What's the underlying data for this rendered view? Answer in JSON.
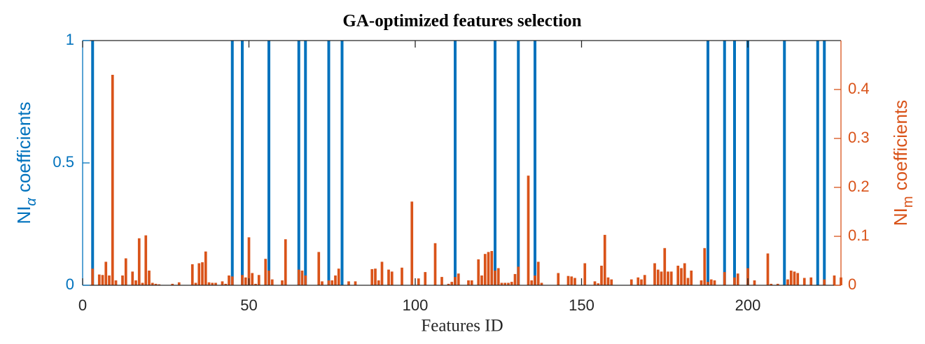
{
  "chart_data": {
    "type": "bar",
    "title": "GA-optimized features selection",
    "xlabel": "Features ID",
    "ylabel": [
      "NI",
      "α",
      "coefficients"
    ],
    "y2label": [
      "NI",
      "m",
      "coefficients"
    ],
    "xlim": [
      0,
      228
    ],
    "xticks": [
      0,
      50,
      100,
      150,
      200
    ],
    "ylim": [
      0,
      1
    ],
    "yticks": [
      0,
      0.5,
      1
    ],
    "y2lim": [
      0,
      0.5
    ],
    "y2ticks": [
      0,
      0.1,
      0.2,
      0.3,
      0.4
    ],
    "series": [
      {
        "color": "#0072BD",
        "x": [
          3,
          45,
          48,
          56,
          65,
          67,
          74,
          78,
          112,
          124,
          131,
          136,
          188,
          193,
          196,
          200,
          211,
          221,
          223
        ],
        "values": [
          1,
          1,
          1,
          1,
          1,
          1,
          1,
          1,
          1,
          1,
          1,
          1,
          1,
          1,
          1,
          1,
          1,
          1,
          1
        ]
      },
      {
        "color": "#D95319",
        "axis": "y2",
        "x": [
          1,
          2,
          3,
          4,
          5,
          6,
          7,
          8,
          9,
          10,
          11,
          12,
          13,
          14,
          15,
          16,
          17,
          18,
          19,
          20,
          21,
          22,
          23,
          24,
          25,
          26,
          27,
          28,
          29,
          30,
          31,
          32,
          33,
          34,
          35,
          36,
          37,
          38,
          39,
          40,
          41,
          42,
          43,
          44,
          45,
          46,
          47,
          48,
          49,
          50,
          51,
          52,
          53,
          54,
          55,
          56,
          57,
          58,
          59,
          60,
          61,
          62,
          63,
          64,
          65,
          66,
          67,
          68,
          69,
          70,
          71,
          72,
          73,
          74,
          75,
          76,
          77,
          78,
          79,
          80,
          81,
          82,
          83,
          84,
          85,
          86,
          87,
          88,
          89,
          90,
          91,
          92,
          93,
          94,
          95,
          96,
          97,
          98,
          99,
          100,
          101,
          102,
          103,
          104,
          105,
          106,
          107,
          108,
          109,
          110,
          111,
          112,
          113,
          114,
          115,
          116,
          117,
          118,
          119,
          120,
          121,
          122,
          123,
          124,
          125,
          126,
          127,
          128,
          129,
          130,
          131,
          132,
          133,
          134,
          135,
          136,
          137,
          138,
          139,
          140,
          141,
          142,
          143,
          144,
          145,
          146,
          147,
          148,
          149,
          150,
          151,
          152,
          153,
          154,
          155,
          156,
          157,
          158,
          159,
          160,
          161,
          162,
          163,
          164,
          165,
          166,
          167,
          168,
          169,
          170,
          171,
          172,
          173,
          174,
          175,
          176,
          177,
          178,
          179,
          180,
          181,
          182,
          183,
          184,
          185,
          186,
          187,
          188,
          189,
          190,
          191,
          192,
          193,
          194,
          195,
          196,
          197,
          198,
          199,
          200,
          201,
          202,
          203,
          204,
          205,
          206,
          207,
          208,
          209,
          210,
          211,
          212,
          213,
          214,
          215,
          216,
          217,
          218,
          219,
          220,
          221,
          222,
          223,
          224,
          225,
          226,
          227,
          228
        ],
        "values": [
          0,
          0,
          0.034,
          0,
          0.022,
          0.021,
          0.048,
          0.02,
          0.43,
          0.01,
          0,
          0.02,
          0.055,
          0,
          0.028,
          0.01,
          0.096,
          0.005,
          0.102,
          0.03,
          0.005,
          0.003,
          0.002,
          0,
          0,
          0,
          0.003,
          0,
          0.006,
          0,
          0,
          0,
          0.043,
          0.005,
          0.045,
          0.047,
          0.069,
          0.006,
          0.005,
          0.005,
          0,
          0.008,
          0.003,
          0.02,
          0.018,
          0,
          0,
          0.021,
          0.016,
          0.098,
          0.025,
          0.003,
          0.021,
          0,
          0.054,
          0.03,
          0.012,
          0,
          0,
          0.01,
          0.094,
          0,
          0,
          0,
          0.032,
          0.03,
          0.02,
          0,
          0,
          0,
          0.068,
          0.008,
          0,
          0.01,
          0.01,
          0.02,
          0.034,
          0,
          0,
          0.008,
          0,
          0.008,
          0,
          0,
          0,
          0,
          0.033,
          0.034,
          0.01,
          0.048,
          0,
          0.032,
          0.028,
          0,
          0,
          0.036,
          0,
          0,
          0.171,
          0,
          0.014,
          0,
          0.027,
          0,
          0,
          0.086,
          0,
          0.017,
          0,
          0.003,
          0.007,
          0.017,
          0.024,
          0,
          0,
          0.01,
          0.01,
          0,
          0.053,
          0.02,
          0.064,
          0.068,
          0.07,
          0.03,
          0.035,
          0.005,
          0.005,
          0.005,
          0.007,
          0.023,
          0.038,
          0,
          0,
          0.224,
          0.01,
          0.02,
          0.048,
          0.005,
          0,
          0,
          0,
          0,
          0.025,
          0,
          0,
          0.019,
          0.018,
          0.015,
          0,
          0,
          0.045,
          0,
          0,
          0.008,
          0.004,
          0.04,
          0.103,
          0.016,
          0.012,
          0,
          0,
          0,
          0,
          0,
          0.012,
          0,
          0.016,
          0.012,
          0.021,
          0,
          0,
          0.045,
          0.032,
          0.028,
          0.076,
          0.028,
          0.028,
          0,
          0.04,
          0.035,
          0.045,
          0.015,
          0.03,
          0,
          0,
          0.01,
          0.076,
          0.007,
          0.012,
          0.01,
          0,
          0,
          0.027,
          0,
          0,
          0.016,
          0.024,
          0,
          0,
          0.035,
          0,
          0.01,
          0,
          0,
          0,
          0.065,
          0.003,
          0,
          0.003,
          0,
          0,
          0.012,
          0.03,
          0.028,
          0.025,
          0,
          0.015,
          0,
          0.016,
          0,
          0,
          0,
          0.012,
          0,
          0,
          0.02,
          0,
          0.016
        ]
      }
    ]
  }
}
